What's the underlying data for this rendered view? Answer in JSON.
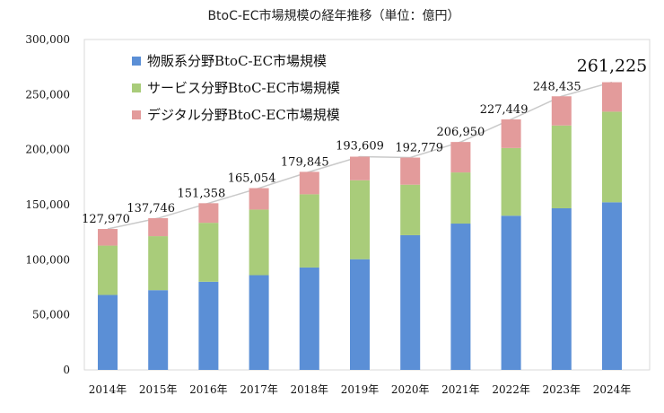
{
  "chart_data": {
    "type": "bar",
    "stacked": true,
    "title": "BtoC-EC市場規模の経年推移（単位：億円）",
    "categories": [
      "2014年",
      "2015年",
      "2016年",
      "2017年",
      "2018年",
      "2019年",
      "2020年",
      "2021年",
      "2022年",
      "2023年",
      "2024年"
    ],
    "series": [
      {
        "name": "物販系分野BtoC-EC市場規模",
        "color": "#5b8fd6",
        "values": [
          68043,
          72398,
          80043,
          86008,
          92992,
          100515,
          122333,
          132865,
          139997,
          146760,
          152194
        ]
      },
      {
        "name": "サービス分野BtoC-EC市場規模",
        "color": "#a9cc7a",
        "values": [
          44816,
          49014,
          53532,
          59568,
          66471,
          71672,
          45832,
          46424,
          61477,
          75169,
          82278
        ]
      },
      {
        "name": "デジタル分野BtoC-EC市場規模",
        "color": "#e39b9b",
        "values": [
          15111,
          16334,
          17783,
          19478,
          20382,
          21422,
          24614,
          27661,
          25975,
          26506,
          26753
        ]
      }
    ],
    "totals": [
      127970,
      137746,
      151358,
      165054,
      179845,
      193609,
      192779,
      206950,
      227449,
      248435,
      261225
    ],
    "total_labels": [
      "127,970",
      "137,746",
      "151,358",
      "165,054",
      "179,845",
      "193,609",
      "192,779",
      "206,950",
      "227,449",
      "248,435",
      "261,225"
    ],
    "ylim": [
      0,
      300000
    ],
    "yticks": [
      0,
      50000,
      100000,
      150000,
      200000,
      250000,
      300000
    ],
    "ytick_labels": [
      "0",
      "50,000",
      "100,000",
      "150,000",
      "200,000",
      "250,000",
      "300,000"
    ],
    "grid": false,
    "legend_position": "top-left",
    "total_trend_line_color": "#c9c9c9"
  }
}
